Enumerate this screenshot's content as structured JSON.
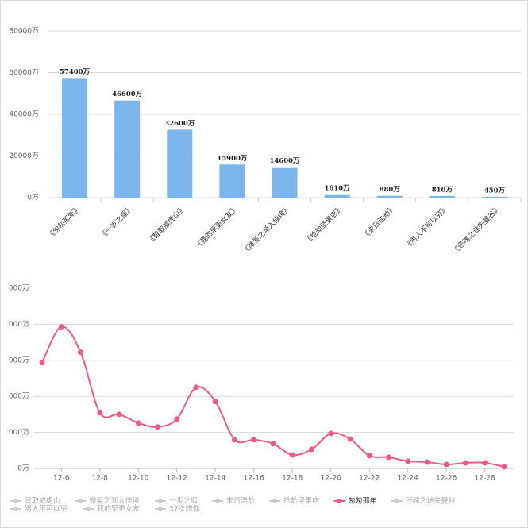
{
  "chart_data": [
    {
      "type": "bar",
      "categories": [
        "《匆匆那年》",
        "《一步之遥》",
        "《智取威虎山》",
        "《我的早更女友》",
        "《微爱之渐入佳境》",
        "《抢劫坚果店》",
        "《末日浩劫》",
        "《男人不可以穷》",
        "《还魂之迷失曼谷》"
      ],
      "values": [
        57400,
        46600,
        32600,
        15900,
        14600,
        1610,
        880,
        810,
        450
      ],
      "value_labels": [
        "57400万",
        "46600万",
        "32600万",
        "15900万",
        "14600万",
        "1610万",
        "880万",
        "810万",
        "450万"
      ],
      "color": "#7cb5ec",
      "ylim": [
        0,
        80000
      ],
      "yticks": [
        {
          "value": 0,
          "label": "0万"
        },
        {
          "value": 20000,
          "label": "20000万"
        },
        {
          "value": 40000,
          "label": "40000万"
        },
        {
          "value": 60000,
          "label": "60000万"
        },
        {
          "value": 80000,
          "label": "80000万"
        }
      ],
      "grid": true
    },
    {
      "type": "line",
      "categories": [
        null,
        "12-6",
        null,
        "12-8",
        null,
        "12-10",
        null,
        "12-12",
        null,
        "12-14",
        null,
        "12-16",
        null,
        "12-18",
        null,
        "12-20",
        null,
        "12-22",
        null,
        "12-24",
        null,
        "12-26",
        null,
        "12-28",
        null
      ],
      "series": [
        {
          "name": "智取威虎山",
          "color": "#cccccc",
          "visible": false
        },
        {
          "name": "微爱之渐入佳境",
          "color": "#cccccc",
          "visible": false
        },
        {
          "name": "一步之遥",
          "color": "#cccccc",
          "visible": false
        },
        {
          "name": "末日浩劫",
          "color": "#cccccc",
          "visible": false
        },
        {
          "name": "抢劫坚果店",
          "color": "#cccccc",
          "visible": false
        },
        {
          "name": "匆匆那年",
          "color": "#ee5a86",
          "visible": true,
          "values": [
            5870,
            7860,
            6450,
            3090,
            3000,
            2520,
            2300,
            2740,
            4500,
            3710,
            1590,
            1590,
            1370,
            750,
            1060,
            1940,
            1630,
            710,
            620,
            400,
            350,
            220,
            310,
            310,
            90
          ]
        },
        {
          "name": "还魂之迷失曼谷",
          "color": "#cccccc",
          "visible": false
        },
        {
          "name": "男人不可以穷",
          "color": "#cccccc",
          "visible": false
        },
        {
          "name": "我的早更女友",
          "color": "#cccccc",
          "visible": false
        },
        {
          "name": "37次想你",
          "color": "#cccccc",
          "visible": false
        }
      ],
      "ylim": [
        0,
        10000
      ],
      "yticks": [
        {
          "value": 0,
          "label": "0万"
        },
        {
          "value": 2000,
          "label": "000万"
        },
        {
          "value": 4000,
          "label": "000万"
        },
        {
          "value": 6000,
          "label": "000万"
        },
        {
          "value": 8000,
          "label": "000万"
        },
        {
          "value": 10000,
          "label": "000万"
        }
      ],
      "grid": true
    }
  ]
}
